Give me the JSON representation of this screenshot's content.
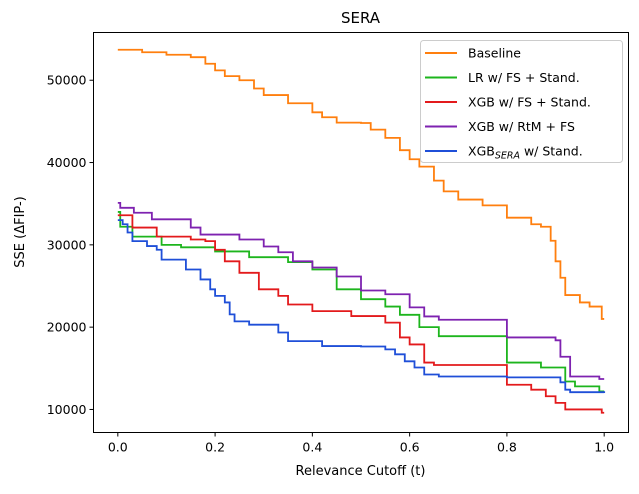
{
  "chart_data": {
    "type": "line",
    "title": "SERA",
    "xlabel": "Relevance Cutoff (t)",
    "ylabel": "SSE (ΔFIP-)",
    "xlim": [
      -0.05,
      1.05
    ],
    "ylim": [
      7200,
      55800
    ],
    "xticks": [
      0.0,
      0.2,
      0.4,
      0.6,
      0.8,
      1.0
    ],
    "xtick_labels": [
      "0.0",
      "0.2",
      "0.4",
      "0.6",
      "0.8",
      "1.0"
    ],
    "yticks": [
      10000,
      20000,
      30000,
      40000,
      50000
    ],
    "ytick_labels": [
      "10000",
      "20000",
      "30000",
      "40000",
      "50000"
    ],
    "grid": false,
    "legend_position": "top-right",
    "step": "post",
    "series": [
      {
        "name": "Baseline",
        "label": {
          "prefix": "Baseline",
          "sub": "",
          "suffix": ""
        },
        "color": "#ff7f0e",
        "x": [
          0,
          0.05,
          0.1,
          0.15,
          0.18,
          0.2,
          0.22,
          0.25,
          0.28,
          0.3,
          0.35,
          0.4,
          0.42,
          0.45,
          0.5,
          0.52,
          0.55,
          0.58,
          0.6,
          0.62,
          0.65,
          0.67,
          0.7,
          0.75,
          0.8,
          0.85,
          0.87,
          0.89,
          0.9,
          0.91,
          0.92,
          0.95,
          0.97,
          0.995,
          1.0
        ],
        "y": [
          53700,
          53400,
          53100,
          52800,
          52000,
          51200,
          50500,
          50000,
          49000,
          48200,
          47200,
          46100,
          45500,
          44850,
          44800,
          44000,
          43000,
          41500,
          40400,
          39500,
          37800,
          36500,
          35500,
          34800,
          33300,
          32500,
          32200,
          30500,
          28000,
          26000,
          23900,
          23000,
          22500,
          21000,
          21000
        ]
      },
      {
        "name": "LR w/ FS + Stand.",
        "label": {
          "prefix": "LR w/ FS + Stand.",
          "sub": "",
          "suffix": ""
        },
        "color": "#1db51d",
        "x": [
          0,
          0.005,
          0.03,
          0.09,
          0.13,
          0.2,
          0.27,
          0.35,
          0.4,
          0.45,
          0.5,
          0.55,
          0.58,
          0.62,
          0.66,
          0.8,
          0.87,
          0.92,
          0.94,
          0.99,
          1.0
        ],
        "y": [
          34000,
          32200,
          31000,
          30000,
          29700,
          29200,
          28500,
          27900,
          27000,
          24600,
          23400,
          22500,
          21500,
          20000,
          18900,
          15700,
          15100,
          13400,
          12800,
          12200,
          12200
        ]
      },
      {
        "name": "XGB w/ FS + Stand.",
        "label": {
          "prefix": "XGB w/ FS + Stand.",
          "sub": "",
          "suffix": ""
        },
        "color": "#e31a1c",
        "x": [
          0,
          0.03,
          0.08,
          0.15,
          0.18,
          0.2,
          0.22,
          0.25,
          0.29,
          0.33,
          0.35,
          0.4,
          0.48,
          0.55,
          0.58,
          0.6,
          0.63,
          0.65,
          0.8,
          0.85,
          0.88,
          0.9,
          0.92,
          0.995,
          1.0
        ],
        "y": [
          33600,
          32100,
          31000,
          30650,
          30450,
          29400,
          28000,
          26600,
          24600,
          23800,
          22750,
          21950,
          21350,
          20550,
          18750,
          17900,
          15700,
          15400,
          13000,
          12400,
          11600,
          10800,
          10000,
          9600,
          9600
        ]
      },
      {
        "name": "XGB w/ RtM + FS",
        "label": {
          "prefix": "XGB w/ RtM + FS",
          "sub": "",
          "suffix": ""
        },
        "color": "#7e22b0",
        "x": [
          0,
          0.005,
          0.033,
          0.07,
          0.15,
          0.17,
          0.25,
          0.3,
          0.33,
          0.36,
          0.4,
          0.45,
          0.5,
          0.55,
          0.6,
          0.63,
          0.66,
          0.8,
          0.9,
          0.91,
          0.93,
          0.99,
          1.0
        ],
        "y": [
          35100,
          34500,
          33900,
          33100,
          32100,
          31250,
          30650,
          29800,
          29100,
          28000,
          27250,
          26150,
          24450,
          24000,
          22400,
          21300,
          20900,
          18750,
          18400,
          16400,
          14000,
          13700,
          13700
        ]
      },
      {
        "name": "XGB_SERA w/ Stand.",
        "label": {
          "prefix": "XGB",
          "sub": "SERA",
          "suffix": " w/ Stand."
        },
        "color": "#1f4fd8",
        "x": [
          0,
          0.01,
          0.02,
          0.03,
          0.06,
          0.08,
          0.09,
          0.14,
          0.17,
          0.19,
          0.2,
          0.22,
          0.23,
          0.24,
          0.27,
          0.33,
          0.35,
          0.42,
          0.5,
          0.55,
          0.57,
          0.59,
          0.61,
          0.63,
          0.66,
          0.8,
          0.91,
          0.92,
          0.93,
          1.0
        ],
        "y": [
          33000,
          32500,
          31500,
          30450,
          29850,
          29400,
          28200,
          27000,
          25800,
          24600,
          23800,
          23000,
          21550,
          20700,
          20300,
          19350,
          18300,
          17700,
          17650,
          17300,
          16700,
          15850,
          15100,
          14250,
          14000,
          13900,
          13300,
          12400,
          12100,
          12000
        ]
      }
    ]
  }
}
